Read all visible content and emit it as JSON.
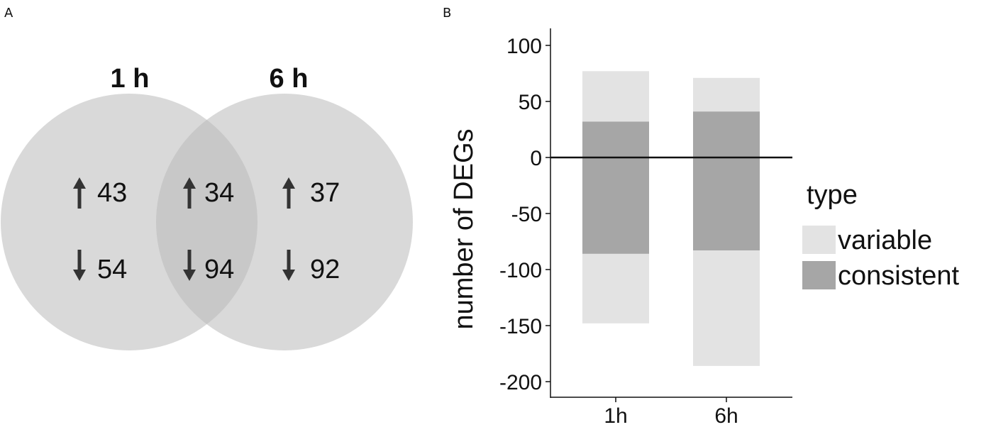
{
  "panel_a": {
    "label": "A",
    "sets": [
      {
        "title": "1 h",
        "up": "43",
        "down": "54"
      },
      {
        "title": "6 h",
        "up": "37",
        "down": "92"
      }
    ],
    "overlap": {
      "up": "34",
      "down": "94"
    },
    "colors": {
      "circle": "#d9d9d9",
      "overlap": "#c8c8c8",
      "arrow": "#333333"
    }
  },
  "panel_b": {
    "label": "B"
  },
  "chart_data": {
    "type": "bar",
    "stacked": true,
    "categories": [
      "1h",
      "6h"
    ],
    "series": [
      {
        "name": "consistent",
        "color": "#a6a6a6",
        "positive": [
          32,
          41
        ],
        "negative": [
          -86,
          -83
        ]
      },
      {
        "name": "variable",
        "color": "#e3e3e3",
        "positive": [
          45,
          30
        ],
        "negative": [
          -62,
          -103
        ]
      }
    ],
    "ylabel": "number of DEGs",
    "ylim": [
      -215,
      115
    ],
    "yticks": [
      100,
      50,
      0,
      -50,
      -100,
      -150,
      -200
    ],
    "ytick_labels": [
      "100",
      "50",
      "0",
      "-50",
      "-100",
      "-150",
      "-200"
    ],
    "legend": {
      "title": "type",
      "position": "right",
      "entries": [
        {
          "label": "variable",
          "color": "#e3e3e3"
        },
        {
          "label": "consistent",
          "color": "#a6a6a6"
        }
      ]
    },
    "grid": false
  }
}
